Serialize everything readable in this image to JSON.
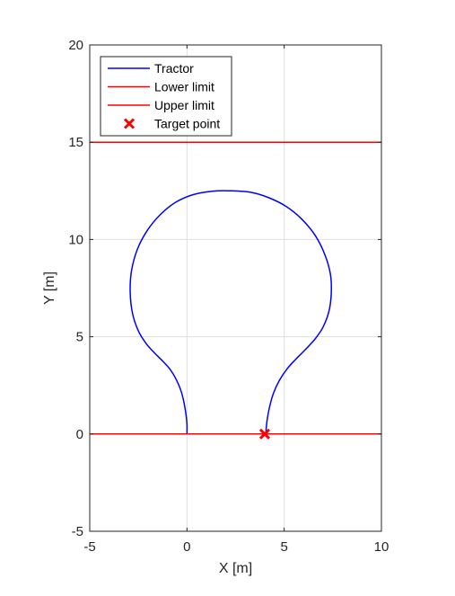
{
  "chart_data": {
    "type": "line",
    "xlabel": "X [m]",
    "ylabel": "Y [m]",
    "xlim": [
      -5,
      10
    ],
    "ylim": [
      -5,
      20
    ],
    "xticks": [
      -5,
      0,
      5,
      10
    ],
    "yticks": [
      -5,
      0,
      5,
      10,
      15,
      20
    ],
    "grid": true,
    "legend_position": "top-left",
    "series": [
      {
        "name": "Tractor",
        "kind": "line",
        "color": "#0000ff",
        "points": [
          [
            0,
            0
          ],
          [
            0,
            0.5
          ],
          [
            -0.05,
            1.0
          ],
          [
            -0.15,
            1.6
          ],
          [
            -0.3,
            2.2
          ],
          [
            -0.55,
            2.8
          ],
          [
            -0.85,
            3.3
          ],
          [
            -1.25,
            3.75
          ],
          [
            -1.65,
            4.15
          ],
          [
            -2.1,
            4.65
          ],
          [
            -2.5,
            5.3
          ],
          [
            -2.8,
            6.2
          ],
          [
            -2.92,
            7.3
          ],
          [
            -2.85,
            8.4
          ],
          [
            -2.55,
            9.5
          ],
          [
            -2.05,
            10.45
          ],
          [
            -1.4,
            11.25
          ],
          [
            -0.6,
            11.9
          ],
          [
            0.3,
            12.3
          ],
          [
            1.3,
            12.48
          ],
          [
            2.3,
            12.5
          ],
          [
            3.3,
            12.42
          ],
          [
            4.2,
            12.15
          ],
          [
            5.1,
            11.7
          ],
          [
            5.9,
            11.05
          ],
          [
            6.6,
            10.2
          ],
          [
            7.1,
            9.2
          ],
          [
            7.38,
            8.2
          ],
          [
            7.42,
            7.2
          ],
          [
            7.3,
            6.3
          ],
          [
            7.0,
            5.5
          ],
          [
            6.6,
            4.9
          ],
          [
            6.1,
            4.35
          ],
          [
            5.6,
            3.85
          ],
          [
            5.15,
            3.35
          ],
          [
            4.75,
            2.75
          ],
          [
            4.45,
            2.1
          ],
          [
            4.25,
            1.4
          ],
          [
            4.12,
            0.7
          ],
          [
            4.05,
            0
          ]
        ]
      },
      {
        "name": "Lower limit",
        "kind": "hline",
        "color": "#ff0000",
        "y": 0
      },
      {
        "name": "Upper limit",
        "kind": "hline",
        "color": "#ff0000",
        "y": 15
      },
      {
        "name": "Target point",
        "kind": "marker",
        "marker": "x",
        "color": "#ff0000",
        "points": [
          [
            4,
            0
          ]
        ]
      }
    ]
  }
}
